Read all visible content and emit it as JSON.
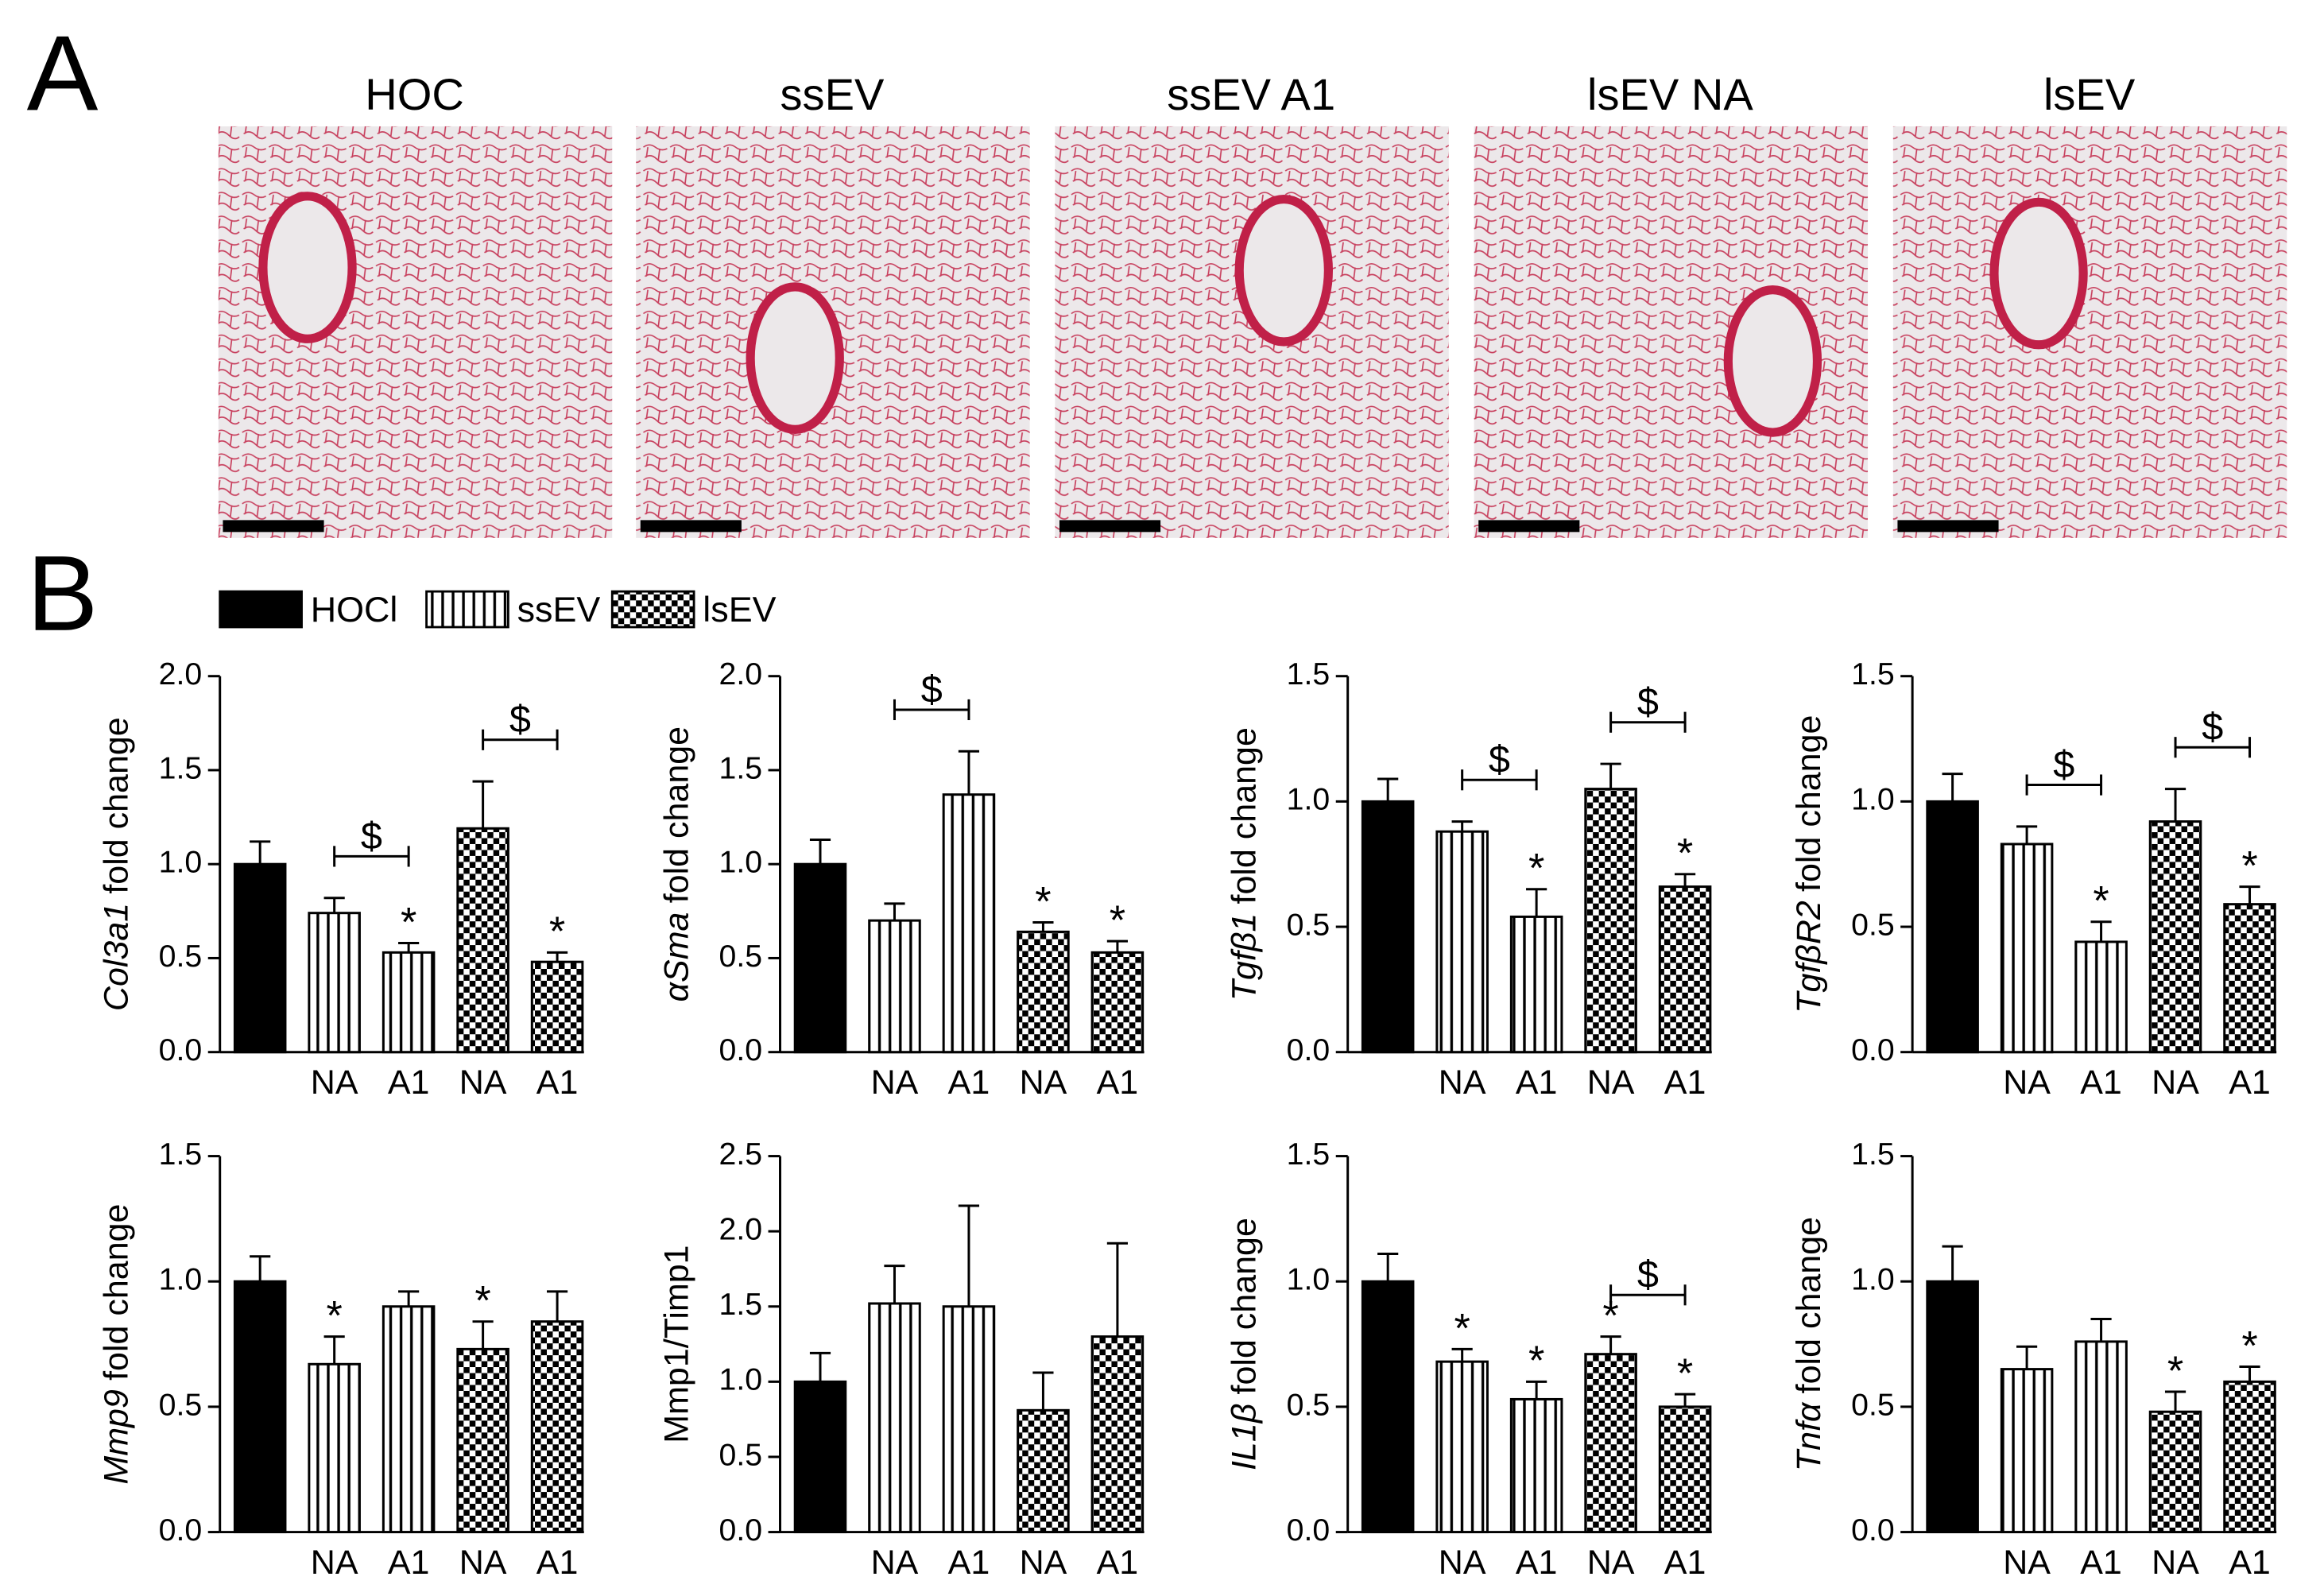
{
  "panel_labels": [
    "A",
    "B"
  ],
  "image_titles": [
    "HOC",
    "ssEV",
    "ssEV A1",
    "lsEV NA",
    "lsEV"
  ],
  "legend": [
    {
      "name": "HOCl",
      "fill": "solid"
    },
    {
      "name": "ssEV",
      "fill": "stripes"
    },
    {
      "name": "lsEV",
      "fill": "checker"
    }
  ],
  "chart_data": [
    {
      "type": "bar",
      "ylabel": {
        "gene": "Col3a1",
        "text": "fold change"
      },
      "categories": [
        null,
        "NA",
        "A1",
        "NA",
        "A1"
      ],
      "fills": [
        "solid",
        "stripes",
        "stripes",
        "checker",
        "checker"
      ],
      "values": [
        1.0,
        0.74,
        0.53,
        1.19,
        0.48
      ],
      "errors": [
        0.12,
        0.08,
        0.05,
        0.25,
        0.05
      ],
      "ylim": [
        0,
        2
      ],
      "yticks": [
        {
          "value": 0,
          "label": "0.0"
        },
        {
          "value": 0.5,
          "label": "0.5"
        },
        {
          "value": 1,
          "label": "1.0"
        },
        {
          "value": 1.5,
          "label": "1.5"
        },
        {
          "value": 2,
          "label": "2.0"
        }
      ],
      "stars": [
        null,
        null,
        "*",
        null,
        "*"
      ],
      "brackets": [
        {
          "text": "$",
          "from": 1,
          "to": 2
        },
        {
          "text": "$",
          "from": 3,
          "to": 4
        }
      ]
    },
    {
      "type": "bar",
      "ylabel": {
        "gene": "αSma",
        "text": "fold change"
      },
      "categories": [
        null,
        "NA",
        "A1",
        "NA",
        "A1"
      ],
      "fills": [
        "solid",
        "stripes",
        "stripes",
        "checker",
        "checker"
      ],
      "values": [
        1.0,
        0.7,
        1.37,
        0.64,
        0.53
      ],
      "errors": [
        0.13,
        0.09,
        0.23,
        0.05,
        0.06
      ],
      "ylim": [
        0,
        2
      ],
      "yticks": [
        {
          "value": 0,
          "label": "0.0"
        },
        {
          "value": 0.5,
          "label": "0.5"
        },
        {
          "value": 1,
          "label": "1.0"
        },
        {
          "value": 1.5,
          "label": "1.5"
        },
        {
          "value": 2,
          "label": "2.0"
        }
      ],
      "stars": [
        null,
        null,
        null,
        "*",
        "*"
      ],
      "brackets": [
        {
          "text": "$",
          "from": 1,
          "to": 2
        }
      ]
    },
    {
      "type": "bar",
      "ylabel": {
        "gene": "Tgfβ1",
        "text": "fold change"
      },
      "categories": [
        null,
        "NA",
        "A1",
        "NA",
        "A1"
      ],
      "fills": [
        "solid",
        "stripes",
        "stripes",
        "checker",
        "checker"
      ],
      "values": [
        1.0,
        0.88,
        0.54,
        1.05,
        0.66
      ],
      "errors": [
        0.09,
        0.04,
        0.11,
        0.1,
        0.05
      ],
      "ylim": [
        0,
        1.5
      ],
      "yticks": [
        {
          "value": 0,
          "label": "0.0"
        },
        {
          "value": 0.5,
          "label": "0.5"
        },
        {
          "value": 1,
          "label": "1.0"
        },
        {
          "value": 1.5,
          "label": "1.5"
        }
      ],
      "stars": [
        null,
        null,
        "*",
        null,
        "*"
      ],
      "brackets": [
        {
          "text": "$",
          "from": 1,
          "to": 2
        },
        {
          "text": "$",
          "from": 3,
          "to": 4
        }
      ]
    },
    {
      "type": "bar",
      "ylabel": {
        "gene": "TgfβR2",
        "text": "fold change"
      },
      "categories": [
        null,
        "NA",
        "A1",
        "NA",
        "A1"
      ],
      "fills": [
        "solid",
        "stripes",
        "stripes",
        "checker",
        "checker"
      ],
      "values": [
        1.0,
        0.83,
        0.44,
        0.92,
        0.59
      ],
      "errors": [
        0.11,
        0.07,
        0.08,
        0.13,
        0.07
      ],
      "ylim": [
        0,
        1.5
      ],
      "yticks": [
        {
          "value": 0,
          "label": "0.0"
        },
        {
          "value": 0.5,
          "label": "0.5"
        },
        {
          "value": 1,
          "label": "1.0"
        },
        {
          "value": 1.5,
          "label": "1.5"
        }
      ],
      "stars": [
        null,
        null,
        "*",
        null,
        "*"
      ],
      "brackets": [
        {
          "text": "$",
          "from": 1,
          "to": 2
        },
        {
          "text": "$",
          "from": 3,
          "to": 4
        }
      ]
    },
    {
      "type": "bar",
      "ylabel": {
        "gene": "Mmp9",
        "text": "fold change"
      },
      "categories": [
        null,
        "NA",
        "A1",
        "NA",
        "A1"
      ],
      "fills": [
        "solid",
        "stripes",
        "stripes",
        "checker",
        "checker"
      ],
      "values": [
        1.0,
        0.67,
        0.9,
        0.73,
        0.84
      ],
      "errors": [
        0.1,
        0.11,
        0.06,
        0.11,
        0.12
      ],
      "ylim": [
        0,
        1.5
      ],
      "yticks": [
        {
          "value": 0,
          "label": "0.0"
        },
        {
          "value": 0.5,
          "label": "0.5"
        },
        {
          "value": 1,
          "label": "1.0"
        },
        {
          "value": 1.5,
          "label": "1.5"
        }
      ],
      "stars": [
        null,
        "*",
        null,
        "*",
        null
      ],
      "brackets": []
    },
    {
      "type": "bar",
      "ylabel": {
        "text": "Mmp1/Timp1"
      },
      "categories": [
        null,
        "NA",
        "A1",
        "NA",
        "A1"
      ],
      "fills": [
        "solid",
        "stripes",
        "stripes",
        "checker",
        "checker"
      ],
      "values": [
        1.0,
        1.52,
        1.5,
        0.81,
        1.3
      ],
      "errors": [
        0.19,
        0.25,
        0.67,
        0.25,
        0.62
      ],
      "ylim": [
        0,
        2.5
      ],
      "yticks": [
        {
          "value": 0,
          "label": "0.0"
        },
        {
          "value": 0.5,
          "label": "0.5"
        },
        {
          "value": 1,
          "label": "1.0"
        },
        {
          "value": 1.5,
          "label": "1.5"
        },
        {
          "value": 2,
          "label": "2.0"
        },
        {
          "value": 2.5,
          "label": "2.5"
        }
      ],
      "stars": [
        null,
        null,
        null,
        null,
        null
      ],
      "brackets": []
    },
    {
      "type": "bar",
      "ylabel": {
        "gene": "IL1β",
        "text": "fold change"
      },
      "categories": [
        null,
        "NA",
        "A1",
        "NA",
        "A1"
      ],
      "fills": [
        "solid",
        "stripes",
        "stripes",
        "checker",
        "checker"
      ],
      "values": [
        1.0,
        0.68,
        0.53,
        0.71,
        0.5
      ],
      "errors": [
        0.11,
        0.05,
        0.07,
        0.07,
        0.05
      ],
      "ylim": [
        0,
        1.5
      ],
      "yticks": [
        {
          "value": 0,
          "label": "0.0"
        },
        {
          "value": 0.5,
          "label": "0.5"
        },
        {
          "value": 1,
          "label": "1.0"
        },
        {
          "value": 1.5,
          "label": "1.5"
        }
      ],
      "stars": [
        null,
        "*",
        "*",
        "*",
        "*"
      ],
      "brackets": [
        {
          "text": "$",
          "from": 3,
          "to": 4
        }
      ]
    },
    {
      "type": "bar",
      "ylabel": {
        "gene": "Tnfα",
        "text": "fold change"
      },
      "categories": [
        null,
        "NA",
        "A1",
        "NA",
        "A1"
      ],
      "fills": [
        "solid",
        "stripes",
        "stripes",
        "checker",
        "checker"
      ],
      "values": [
        1.0,
        0.65,
        0.76,
        0.48,
        0.6
      ],
      "errors": [
        0.14,
        0.09,
        0.09,
        0.08,
        0.06
      ],
      "ylim": [
        0,
        1.5
      ],
      "yticks": [
        {
          "value": 0,
          "label": "0.0"
        },
        {
          "value": 0.5,
          "label": "0.5"
        },
        {
          "value": 1,
          "label": "1.0"
        },
        {
          "value": 1.5,
          "label": "1.5"
        }
      ],
      "stars": [
        null,
        null,
        null,
        "*",
        "*"
      ],
      "brackets": []
    }
  ]
}
